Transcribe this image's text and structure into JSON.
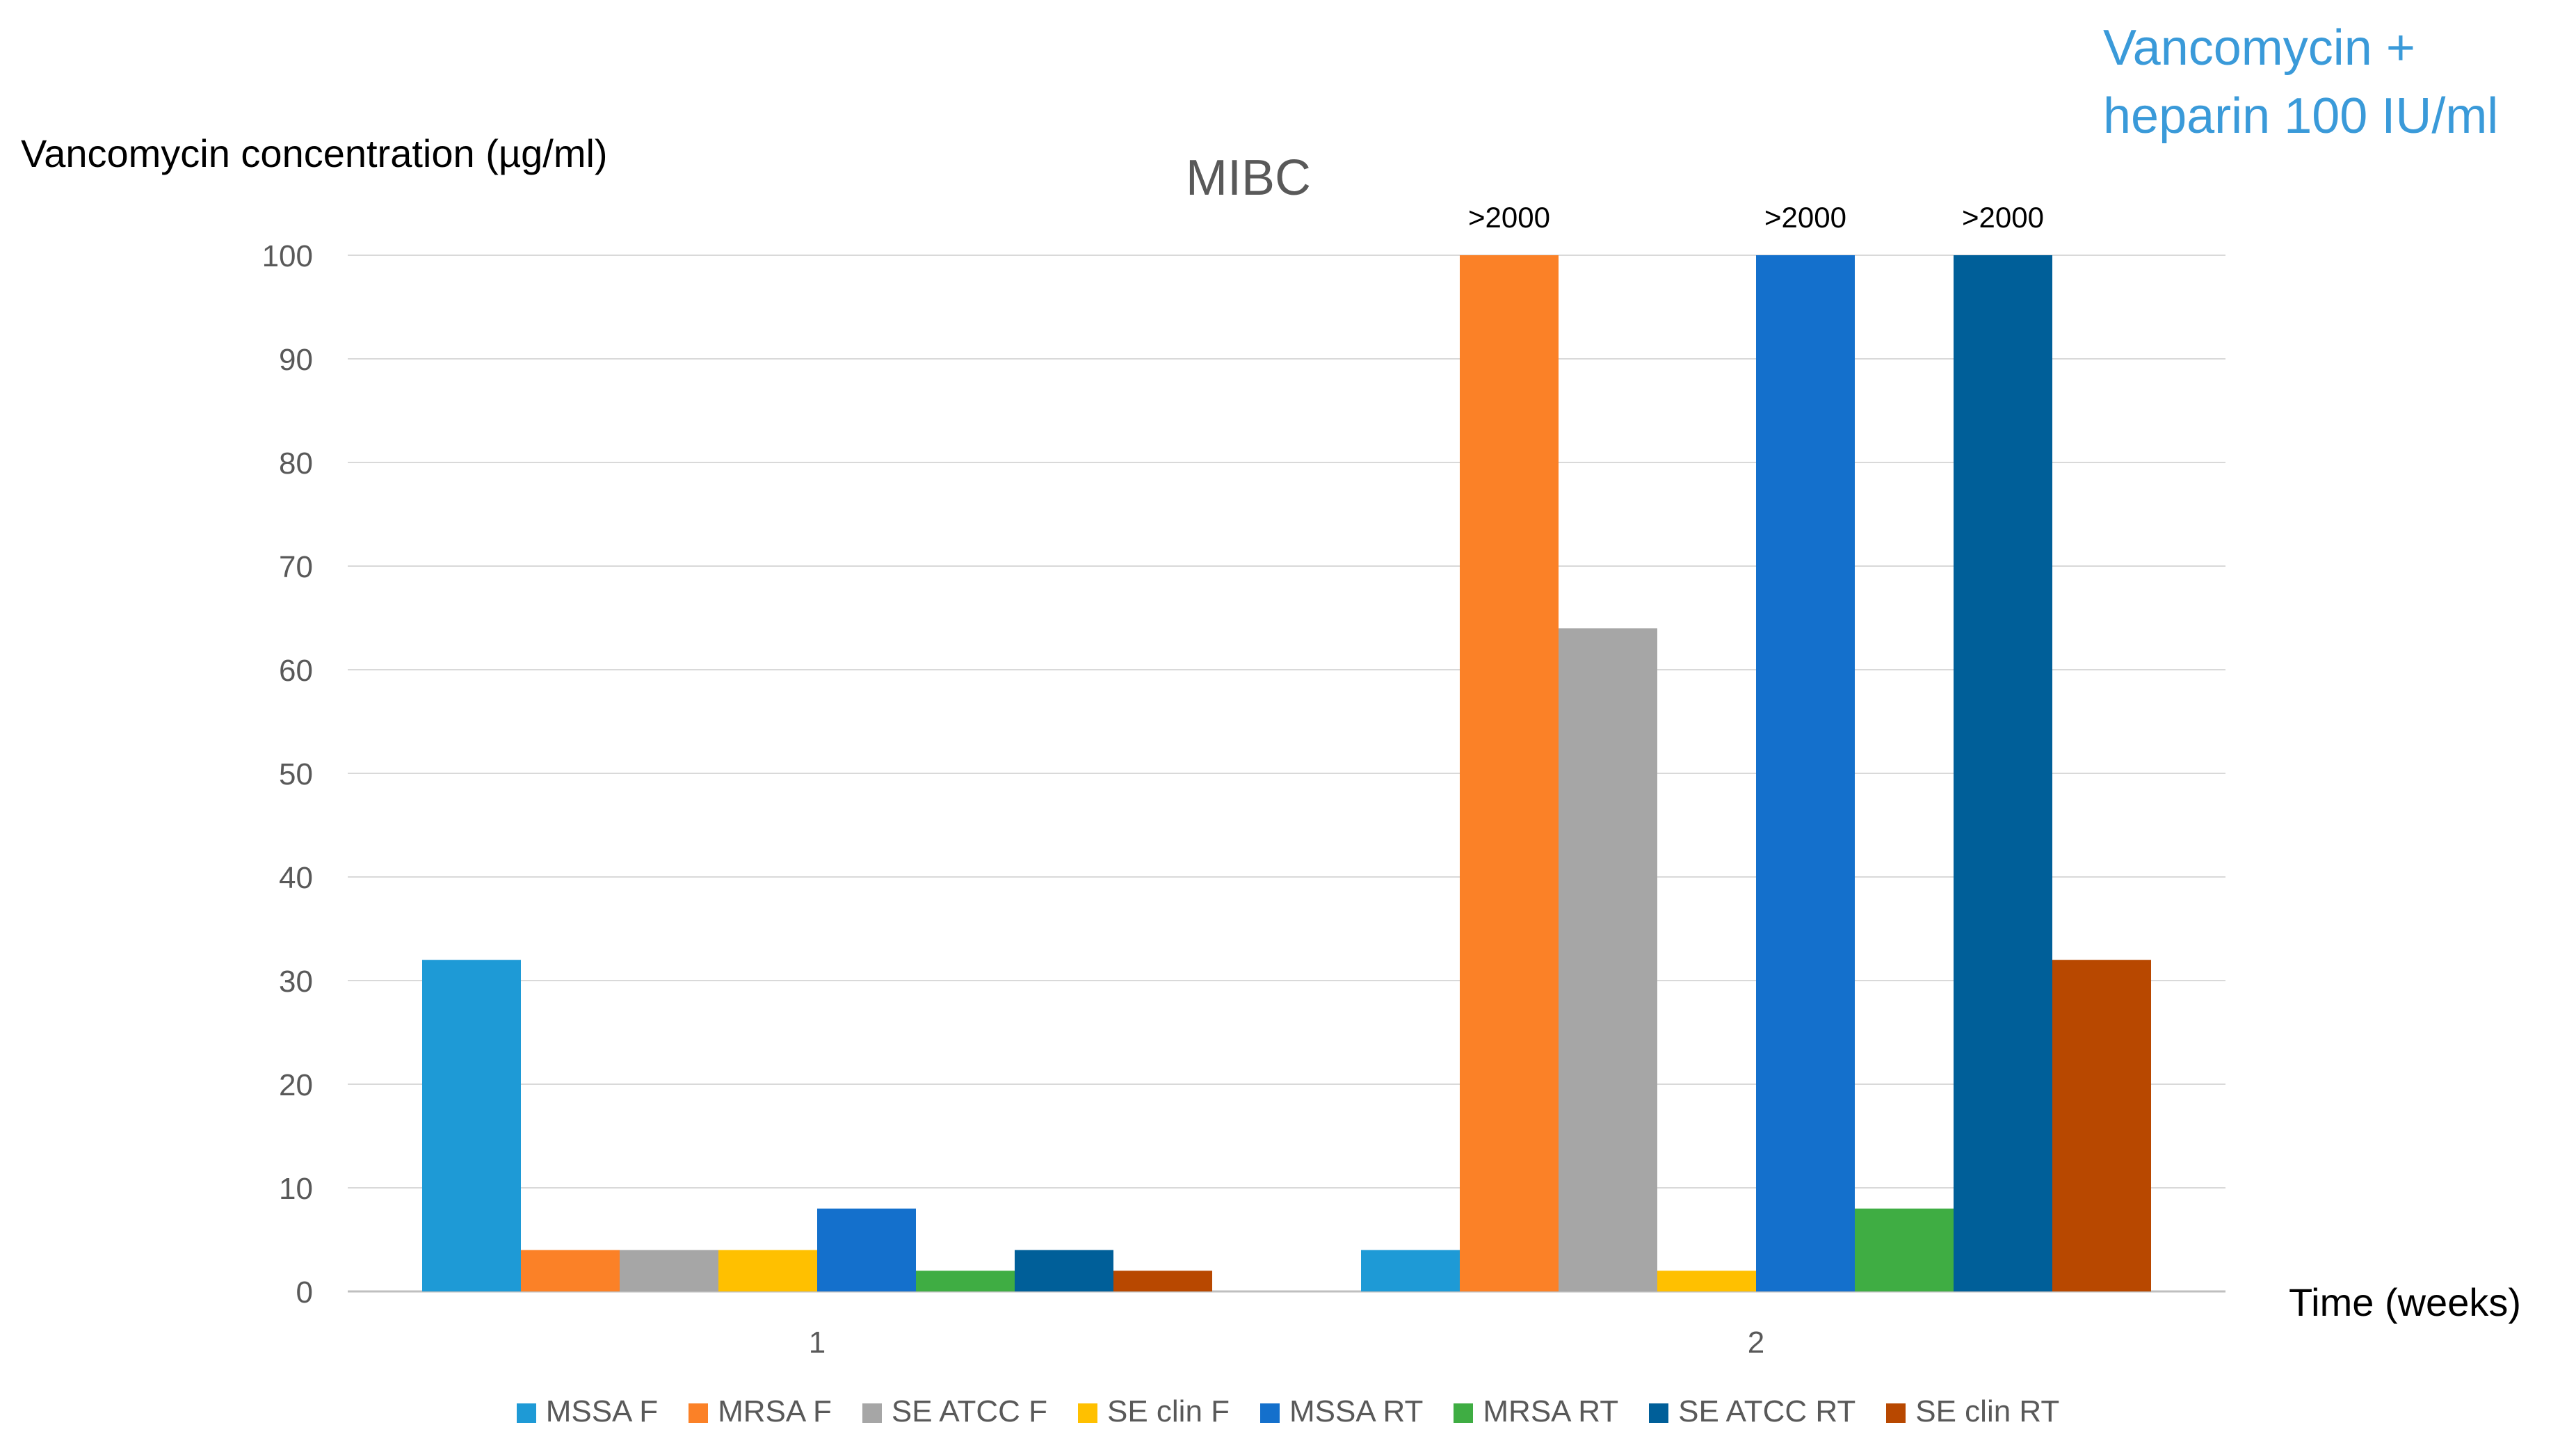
{
  "corner_note": "Vancomycin + heparin 100 IU/ml",
  "chart_data": {
    "type": "bar",
    "title": "MIBC",
    "ylabel": "Vancomycin concentration (µg/ml)",
    "xlabel": "Time (weeks)",
    "categories": [
      "1",
      "2"
    ],
    "ylim": [
      0,
      100
    ],
    "yticks": [
      0,
      10,
      20,
      30,
      40,
      50,
      60,
      70,
      80,
      90,
      100
    ],
    "grid": true,
    "legend_position": "bottom",
    "series": [
      {
        "name": "MSSA F",
        "values": [
          32,
          4
        ],
        "color": "#1e9ad6",
        "labels": [
          "",
          ""
        ]
      },
      {
        "name": "MRSA F",
        "values": [
          4,
          100
        ],
        "color": "#fb8127",
        "labels": [
          "",
          ">2000"
        ]
      },
      {
        "name": "SE ATCC F",
        "values": [
          4,
          64
        ],
        "color": "#a6a6a6",
        "labels": [
          "",
          ""
        ]
      },
      {
        "name": "SE clin F",
        "values": [
          4,
          2
        ],
        "color": "#ffc000",
        "labels": [
          "",
          ""
        ]
      },
      {
        "name": "MSSA RT",
        "values": [
          8,
          100
        ],
        "color": "#1470cc",
        "labels": [
          "",
          ">2000"
        ]
      },
      {
        "name": "MRSA RT",
        "values": [
          2,
          8
        ],
        "color": "#3fad43",
        "labels": [
          "",
          ""
        ]
      },
      {
        "name": "SE ATCC RT",
        "values": [
          4,
          100
        ],
        "color": "#005f99",
        "labels": [
          "",
          ">2000"
        ]
      },
      {
        "name": "SE clin RT",
        "values": [
          2,
          32
        ],
        "color": "#b84800",
        "labels": [
          "",
          ""
        ]
      }
    ]
  }
}
